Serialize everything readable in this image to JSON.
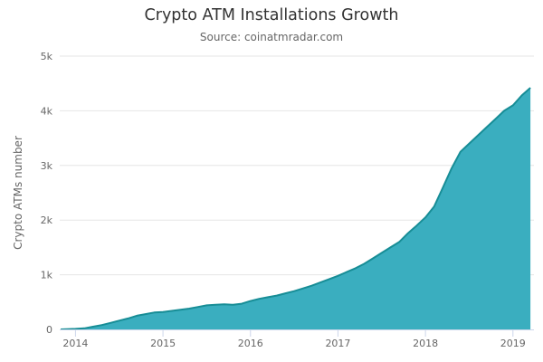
{
  "chart_data": {
    "type": "area",
    "title": "Crypto ATM Installations Growth",
    "subtitle": "Source: coinatmradar.com",
    "xlabel": "",
    "ylabel": "Crypto ATMs number",
    "xlim": [
      2013.82,
      2019.24
    ],
    "ylim": [
      0,
      5000
    ],
    "x_ticks": [
      2014,
      2015,
      2016,
      2017,
      2018,
      2019
    ],
    "x_tick_labels": [
      "2014",
      "2015",
      "2016",
      "2017",
      "2018",
      "2019"
    ],
    "y_ticks": [
      0,
      1000,
      2000,
      3000,
      4000,
      5000
    ],
    "y_tick_labels": [
      "0",
      "1k",
      "2k",
      "3k",
      "4k",
      "5k"
    ],
    "grid": "horizontal",
    "legend": "none",
    "colors": {
      "fill": "#3aaebf",
      "line": "#178d96",
      "grid": "#e6e6e6",
      "axis": "#ccd6eb"
    },
    "series": [
      {
        "x": [
          2013.83,
          2014.0,
          2014.1,
          2014.2,
          2014.3,
          2014.4,
          2014.5,
          2014.6,
          2014.7,
          2014.8,
          2014.9,
          2015.0,
          2015.1,
          2015.2,
          2015.3,
          2015.4,
          2015.5,
          2015.6,
          2015.7,
          2015.8,
          2015.9,
          2016.0,
          2016.1,
          2016.2,
          2016.3,
          2016.4,
          2016.5,
          2016.6,
          2016.7,
          2016.8,
          2016.9,
          2017.0,
          2017.1,
          2017.2,
          2017.3,
          2017.4,
          2017.5,
          2017.6,
          2017.7,
          2017.8,
          2017.9,
          2018.0,
          2018.1,
          2018.2,
          2018.3,
          2018.4,
          2018.5,
          2018.6,
          2018.7,
          2018.8,
          2018.9,
          2019.0,
          2019.1,
          2019.2
        ],
        "y": [
          0,
          10,
          20,
          50,
          80,
          120,
          160,
          200,
          250,
          280,
          310,
          320,
          340,
          360,
          380,
          410,
          440,
          450,
          460,
          450,
          470,
          520,
          560,
          590,
          620,
          660,
          700,
          750,
          800,
          860,
          920,
          980,
          1050,
          1120,
          1200,
          1300,
          1400,
          1500,
          1600,
          1760,
          1900,
          2050,
          2250,
          2600,
          2950,
          3250,
          3400,
          3550,
          3700,
          3850,
          4000,
          4100,
          4280,
          4420
        ]
      }
    ]
  }
}
